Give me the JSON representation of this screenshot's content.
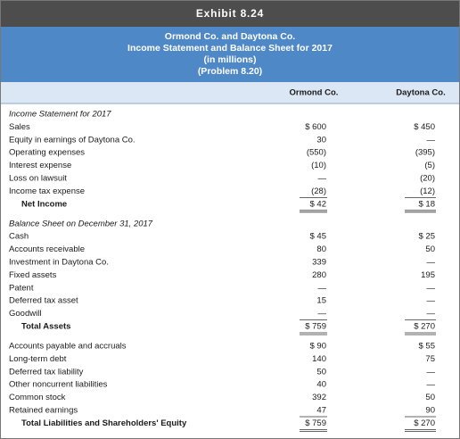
{
  "header": {
    "exhibit": "Exhibit 8.24",
    "title_lines": [
      "Ormond Co. and Daytona Co.",
      "Income Statement and Balance Sheet for 2017",
      "(in millions)",
      "(Problem 8.20)"
    ]
  },
  "columns": [
    "Ormond Co.",
    "Daytona Co."
  ],
  "sections": [
    {
      "title": "Income Statement for 2017",
      "groups": [
        {
          "rows": [
            [
              "Sales",
              "$ 600",
              "$ 450"
            ],
            [
              "Equity in earnings of Daytona Co.",
              "30",
              "—"
            ],
            [
              "Operating expenses",
              "(550)",
              "(395)"
            ],
            [
              "Interest expense",
              "(10)",
              "(5)"
            ],
            [
              "Loss on lawsuit",
              "—",
              "(20)"
            ],
            [
              "Income tax expense",
              "(28)",
              "(12)"
            ]
          ],
          "total": [
            "Net Income",
            "$ 42",
            "$ 18"
          ]
        }
      ]
    },
    {
      "title": "Balance Sheet on December 31, 2017",
      "groups": [
        {
          "rows": [
            [
              "Cash",
              "$ 45",
              "$ 25"
            ],
            [
              "Accounts receivable",
              "80",
              "50"
            ],
            [
              "Investment in Daytona Co.",
              "339",
              "—"
            ],
            [
              "Fixed assets",
              "280",
              "195"
            ],
            [
              "Patent",
              "—",
              "—"
            ],
            [
              "Deferred tax asset",
              "15",
              "—"
            ],
            [
              "Goodwill",
              "—",
              "—"
            ]
          ],
          "total": [
            "Total Assets",
            "$ 759",
            "$ 270"
          ]
        },
        {
          "rows": [
            [
              "Accounts payable and accruals",
              "$ 90",
              "$ 55"
            ],
            [
              "Long-term debt",
              "140",
              "75"
            ],
            [
              "Deferred tax liability",
              "50",
              "—"
            ],
            [
              "Other noncurrent liabilities",
              "40",
              "—"
            ],
            [
              "Common stock",
              "392",
              "50"
            ],
            [
              "Retained earnings",
              "47",
              "90"
            ]
          ],
          "total": [
            "Total Liabilities and Shareholders' Equity",
            "$ 759",
            "$ 270"
          ]
        }
      ]
    }
  ]
}
